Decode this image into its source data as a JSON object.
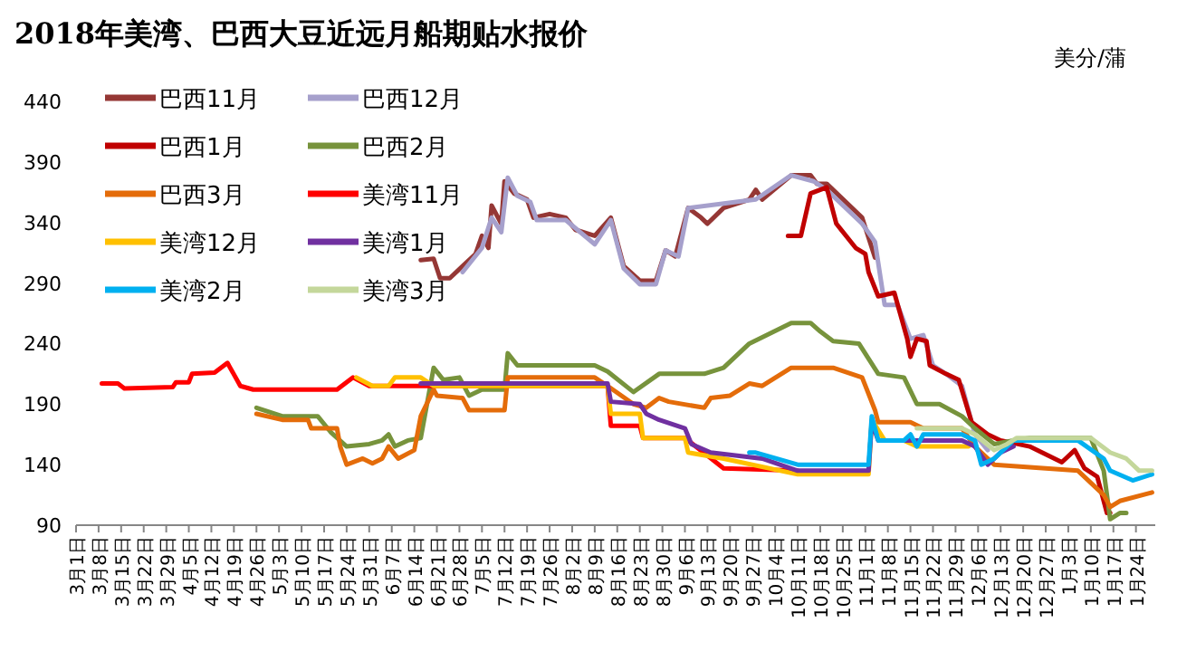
{
  "chart_data": {
    "type": "line",
    "title": "2018年美湾、巴西大豆近远月船期贴水报价",
    "ylabel": "美分/蒲",
    "legend": "top left",
    "ylim": [
      90,
      440
    ],
    "yticks": [
      90,
      140,
      190,
      240,
      290,
      340,
      390,
      440
    ],
    "xlim": [
      "2018-03-01",
      "2019-01-30"
    ],
    "xticks": [
      {
        "value": "2018-03-01",
        "label": "3月1日"
      },
      {
        "value": "2018-03-08",
        "label": "3月8日"
      },
      {
        "value": "2018-03-15",
        "label": "3月15日"
      },
      {
        "value": "2018-03-22",
        "label": "3月22日"
      },
      {
        "value": "2018-03-29",
        "label": "3月29日"
      },
      {
        "value": "2018-04-05",
        "label": "4月5日"
      },
      {
        "value": "2018-04-12",
        "label": "4月12日"
      },
      {
        "value": "2018-04-19",
        "label": "4月19日"
      },
      {
        "value": "2018-04-26",
        "label": "4月26日"
      },
      {
        "value": "2018-05-03",
        "label": "5月3日"
      },
      {
        "value": "2018-05-10",
        "label": "5月10日"
      },
      {
        "value": "2018-05-17",
        "label": "5月17日"
      },
      {
        "value": "2018-05-24",
        "label": "5月24日"
      },
      {
        "value": "2018-05-31",
        "label": "5月31日"
      },
      {
        "value": "2018-06-07",
        "label": "6月7日"
      },
      {
        "value": "2018-06-14",
        "label": "6月14日"
      },
      {
        "value": "2018-06-21",
        "label": "6月21日"
      },
      {
        "value": "2018-06-28",
        "label": "6月28日"
      },
      {
        "value": "2018-07-05",
        "label": "7月5日"
      },
      {
        "value": "2018-07-12",
        "label": "7月12日"
      },
      {
        "value": "2018-07-19",
        "label": "7月19日"
      },
      {
        "value": "2018-07-26",
        "label": "7月26日"
      },
      {
        "value": "2018-08-02",
        "label": "8月2日"
      },
      {
        "value": "2018-08-09",
        "label": "8月9日"
      },
      {
        "value": "2018-08-16",
        "label": "8月16日"
      },
      {
        "value": "2018-08-23",
        "label": "8月23日"
      },
      {
        "value": "2018-08-30",
        "label": "8月30日"
      },
      {
        "value": "2018-09-06",
        "label": "9月6日"
      },
      {
        "value": "2018-09-13",
        "label": "9月13日"
      },
      {
        "value": "2018-09-20",
        "label": "9月20日"
      },
      {
        "value": "2018-09-27",
        "label": "9月27日"
      },
      {
        "value": "2018-10-04",
        "label": "10月4日"
      },
      {
        "value": "2018-10-11",
        "label": "10月11日"
      },
      {
        "value": "2018-10-18",
        "label": "10月18日"
      },
      {
        "value": "2018-10-25",
        "label": "10月25日"
      },
      {
        "value": "2018-11-01",
        "label": "11月1日"
      },
      {
        "value": "2018-11-08",
        "label": "11月8日"
      },
      {
        "value": "2018-11-15",
        "label": "11月15日"
      },
      {
        "value": "2018-11-22",
        "label": "11月22日"
      },
      {
        "value": "2018-11-29",
        "label": "11月29日"
      },
      {
        "value": "2018-12-06",
        "label": "12月6日"
      },
      {
        "value": "2018-12-13",
        "label": "12月13日"
      },
      {
        "value": "2018-12-20",
        "label": "12月20日"
      },
      {
        "value": "2018-12-27",
        "label": "12月27日"
      },
      {
        "value": "2019-01-03",
        "label": "1月3日"
      },
      {
        "value": "2019-01-10",
        "label": "1月10日"
      },
      {
        "value": "2019-01-17",
        "label": "1月17日"
      },
      {
        "value": "2019-01-24",
        "label": "1月24日"
      }
    ],
    "series": [
      {
        "name": "巴西11月",
        "color": "#953735",
        "x": [
          "2018-06-16",
          "2018-06-20",
          "2018-06-22",
          "2018-06-25",
          "2018-06-29",
          "2018-07-03",
          "2018-07-05",
          "2018-07-07",
          "2018-07-08",
          "2018-07-11",
          "2018-07-12",
          "2018-07-15",
          "2018-07-19",
          "2018-07-21",
          "2018-07-26",
          "2018-07-31",
          "2018-08-03",
          "2018-08-09",
          "2018-08-14",
          "2018-08-18",
          "2018-08-23",
          "2018-08-28",
          "2018-08-31",
          "2018-09-03",
          "2018-09-07",
          "2018-09-11",
          "2018-09-13",
          "2018-09-18",
          "2018-09-26",
          "2018-09-28",
          "2018-09-30",
          "2018-10-09",
          "2018-10-15",
          "2018-10-17",
          "2018-10-20",
          "2018-10-31",
          "2018-11-04"
        ],
        "values": [
          309,
          310,
          294,
          294,
          304,
          314,
          329,
          319,
          354,
          339,
          374,
          364,
          359,
          344,
          347,
          344,
          334,
          329,
          344,
          304,
          292,
          292,
          317,
          312,
          352,
          344,
          339,
          352,
          359,
          367,
          359,
          379,
          379,
          372,
          372,
          344,
          311
        ]
      },
      {
        "name": "巴西12月",
        "color": "#a6a0cc",
        "x": [
          "2018-06-29",
          "2018-07-05",
          "2018-07-08",
          "2018-07-11",
          "2018-07-13",
          "2018-07-16",
          "2018-07-20",
          "2018-07-22",
          "2018-07-31",
          "2018-08-09",
          "2018-08-14",
          "2018-08-18",
          "2018-08-23",
          "2018-08-28",
          "2018-08-31",
          "2018-09-04",
          "2018-09-07",
          "2018-09-28",
          "2018-10-09",
          "2018-10-16",
          "2018-10-20",
          "2018-10-31",
          "2018-11-04",
          "2018-11-07",
          "2018-11-11",
          "2018-11-15",
          "2018-11-19",
          "2018-11-22",
          "2018-11-26",
          "2018-12-01",
          "2018-12-05",
          "2018-12-09"
        ],
        "values": [
          299,
          319,
          344,
          332,
          377,
          362,
          357,
          342,
          342,
          322,
          342,
          302,
          289,
          289,
          317,
          312,
          352,
          359,
          379,
          374,
          367,
          339,
          324,
          272,
          272,
          244,
          247,
          222,
          215,
          205,
          165,
          152
        ]
      },
      {
        "name": "巴西1月",
        "color": "#c00000",
        "x": [
          "2018-10-08",
          "2018-10-12",
          "2018-10-15",
          "2018-10-20",
          "2018-10-23",
          "2018-10-29",
          "2018-11-01",
          "2018-11-02",
          "2018-11-05",
          "2018-11-10",
          "2018-11-14",
          "2018-11-15",
          "2018-11-17",
          "2018-11-20",
          "2018-11-21",
          "2018-11-26",
          "2018-11-30",
          "2018-12-04",
          "2018-12-09",
          "2018-12-13",
          "2018-12-22",
          "2019-01-01",
          "2019-01-05",
          "2019-01-08",
          "2019-01-12",
          "2019-01-15",
          "2019-01-16"
        ],
        "values": [
          329,
          329,
          364,
          369,
          339,
          319,
          314,
          299,
          279,
          282,
          244,
          229,
          244,
          242,
          222,
          215,
          210,
          175,
          165,
          160,
          155,
          142,
          152,
          137,
          130,
          100,
          100
        ]
      },
      {
        "name": "巴西2月",
        "color": "#77933c",
        "x": [
          "2018-04-26",
          "2018-05-04",
          "2018-05-15",
          "2018-05-19",
          "2018-05-24",
          "2018-05-31",
          "2018-06-04",
          "2018-06-06",
          "2018-06-08",
          "2018-06-12",
          "2018-06-16",
          "2018-06-20",
          "2018-06-23",
          "2018-06-28",
          "2018-07-01",
          "2018-07-05",
          "2018-07-12",
          "2018-07-13",
          "2018-07-16",
          "2018-08-09",
          "2018-08-13",
          "2018-08-21",
          "2018-08-29",
          "2018-09-12",
          "2018-09-18",
          "2018-09-26",
          "2018-10-09",
          "2018-10-15",
          "2018-10-18",
          "2018-10-22",
          "2018-10-30",
          "2018-11-05",
          "2018-11-13",
          "2018-11-17",
          "2018-11-24",
          "2018-12-01",
          "2018-12-05",
          "2018-12-11",
          "2018-12-17",
          "2018-12-22",
          "2019-01-10",
          "2019-01-14",
          "2019-01-16",
          "2019-01-19",
          "2019-01-21"
        ],
        "values": [
          187,
          180,
          180,
          167,
          155,
          157,
          160,
          165,
          155,
          160,
          162,
          220,
          210,
          212,
          197,
          202,
          202,
          232,
          222,
          222,
          217,
          200,
          215,
          215,
          220,
          240,
          257,
          257,
          250,
          242,
          240,
          215,
          212,
          190,
          190,
          180,
          170,
          157,
          160,
          162,
          162,
          135,
          95,
          100,
          100
        ]
      },
      {
        "name": "巴西3月",
        "color": "#e46c0a",
        "x": [
          "2018-04-26",
          "2018-05-04",
          "2018-05-12",
          "2018-05-13",
          "2018-05-21",
          "2018-05-22",
          "2018-05-24",
          "2018-05-29",
          "2018-06-01",
          "2018-06-04",
          "2018-06-06",
          "2018-06-09",
          "2018-06-14",
          "2018-06-16",
          "2018-06-20",
          "2018-06-21",
          "2018-06-29",
          "2018-07-01",
          "2018-07-12",
          "2018-07-13",
          "2018-08-09",
          "2018-08-13",
          "2018-08-21",
          "2018-08-25",
          "2018-08-29",
          "2018-09-01",
          "2018-09-12",
          "2018-09-14",
          "2018-09-20",
          "2018-09-26",
          "2018-09-30",
          "2018-10-09",
          "2018-10-22",
          "2018-10-31",
          "2018-11-04",
          "2018-11-05",
          "2018-11-15",
          "2018-11-19",
          "2018-12-01",
          "2018-12-05",
          "2018-12-11",
          "2019-01-06",
          "2019-01-14",
          "2019-01-16",
          "2019-01-19",
          "2019-01-29"
        ],
        "values": [
          182,
          177,
          177,
          170,
          170,
          155,
          140,
          145,
          141,
          145,
          155,
          145,
          152,
          180,
          202,
          197,
          195,
          185,
          185,
          212,
          212,
          205,
          190,
          187,
          195,
          192,
          187,
          195,
          197,
          207,
          205,
          220,
          220,
          212,
          185,
          175,
          175,
          170,
          170,
          155,
          140,
          135,
          115,
          105,
          110,
          117
        ]
      },
      {
        "name": "美湾11月",
        "color": "#ff0000",
        "x": [
          "2018-03-09",
          "2018-03-14",
          "2018-03-16",
          "2018-03-31",
          "2018-04-01",
          "2018-04-05",
          "2018-04-06",
          "2018-04-13",
          "2018-04-17",
          "2018-04-21",
          "2018-04-25",
          "2018-05-21",
          "2018-05-26",
          "2018-05-31",
          "2018-06-16",
          "2018-08-13",
          "2018-08-14",
          "2018-08-23",
          "2018-08-24",
          "2018-09-06",
          "2018-09-18",
          "2018-10-11"
        ],
        "values": [
          207,
          207,
          203,
          204,
          208,
          208,
          215,
          216,
          224,
          205,
          202,
          202,
          212,
          205,
          205,
          205,
          172,
          172,
          162,
          162,
          137,
          135
        ]
      },
      {
        "name": "美湾12月",
        "color": "#ffc000",
        "x": [
          "2018-05-27",
          "2018-06-01",
          "2018-06-06",
          "2018-06-08",
          "2018-06-16",
          "2018-06-20",
          "2018-08-13",
          "2018-08-14",
          "2018-08-23",
          "2018-08-24",
          "2018-09-06",
          "2018-09-07",
          "2018-09-18",
          "2018-10-11",
          "2018-11-02",
          "2018-11-03",
          "2018-11-07",
          "2018-11-13",
          "2018-11-17",
          "2018-12-03"
        ],
        "values": [
          212,
          205,
          205,
          212,
          212,
          205,
          205,
          182,
          182,
          162,
          162,
          150,
          145,
          132,
          132,
          177,
          160,
          160,
          155,
          155
        ]
      },
      {
        "name": "美湾1月",
        "color": "#7030a0",
        "x": [
          "2018-06-16",
          "2018-08-13",
          "2018-08-14",
          "2018-08-23",
          "2018-08-25",
          "2018-08-29",
          "2018-09-06",
          "2018-09-08",
          "2018-09-14",
          "2018-09-30",
          "2018-10-11",
          "2018-11-02",
          "2018-11-03",
          "2018-11-05",
          "2018-12-01",
          "2018-12-05",
          "2018-12-09",
          "2018-12-13",
          "2018-12-17"
        ],
        "values": [
          207,
          207,
          192,
          190,
          182,
          177,
          170,
          157,
          150,
          145,
          135,
          135,
          175,
          160,
          160,
          155,
          140,
          150,
          155
        ]
      },
      {
        "name": "美湾2月",
        "color": "#00b0f0",
        "x": [
          "2018-09-26",
          "2018-09-28",
          "2018-10-11",
          "2018-11-02",
          "2018-11-03",
          "2018-11-05",
          "2018-11-13",
          "2018-11-15",
          "2018-11-17",
          "2018-11-19",
          "2018-12-01",
          "2018-12-05",
          "2018-12-07",
          "2018-12-11",
          "2018-12-17",
          "2019-01-06",
          "2019-01-14",
          "2019-01-16",
          "2019-01-23",
          "2019-01-29"
        ],
        "values": [
          150,
          150,
          140,
          140,
          180,
          160,
          160,
          165,
          155,
          165,
          165,
          160,
          140,
          145,
          160,
          160,
          145,
          135,
          127,
          132
        ]
      },
      {
        "name": "美湾3月",
        "color": "#c4d79b",
        "x": [
          "2018-11-17",
          "2018-12-01",
          "2018-12-05",
          "2018-12-11",
          "2018-12-15",
          "2018-12-18",
          "2019-01-10",
          "2019-01-16",
          "2019-01-21",
          "2019-01-25",
          "2019-01-29"
        ],
        "values": [
          170,
          170,
          165,
          152,
          157,
          162,
          162,
          150,
          145,
          135,
          135
        ]
      }
    ]
  }
}
